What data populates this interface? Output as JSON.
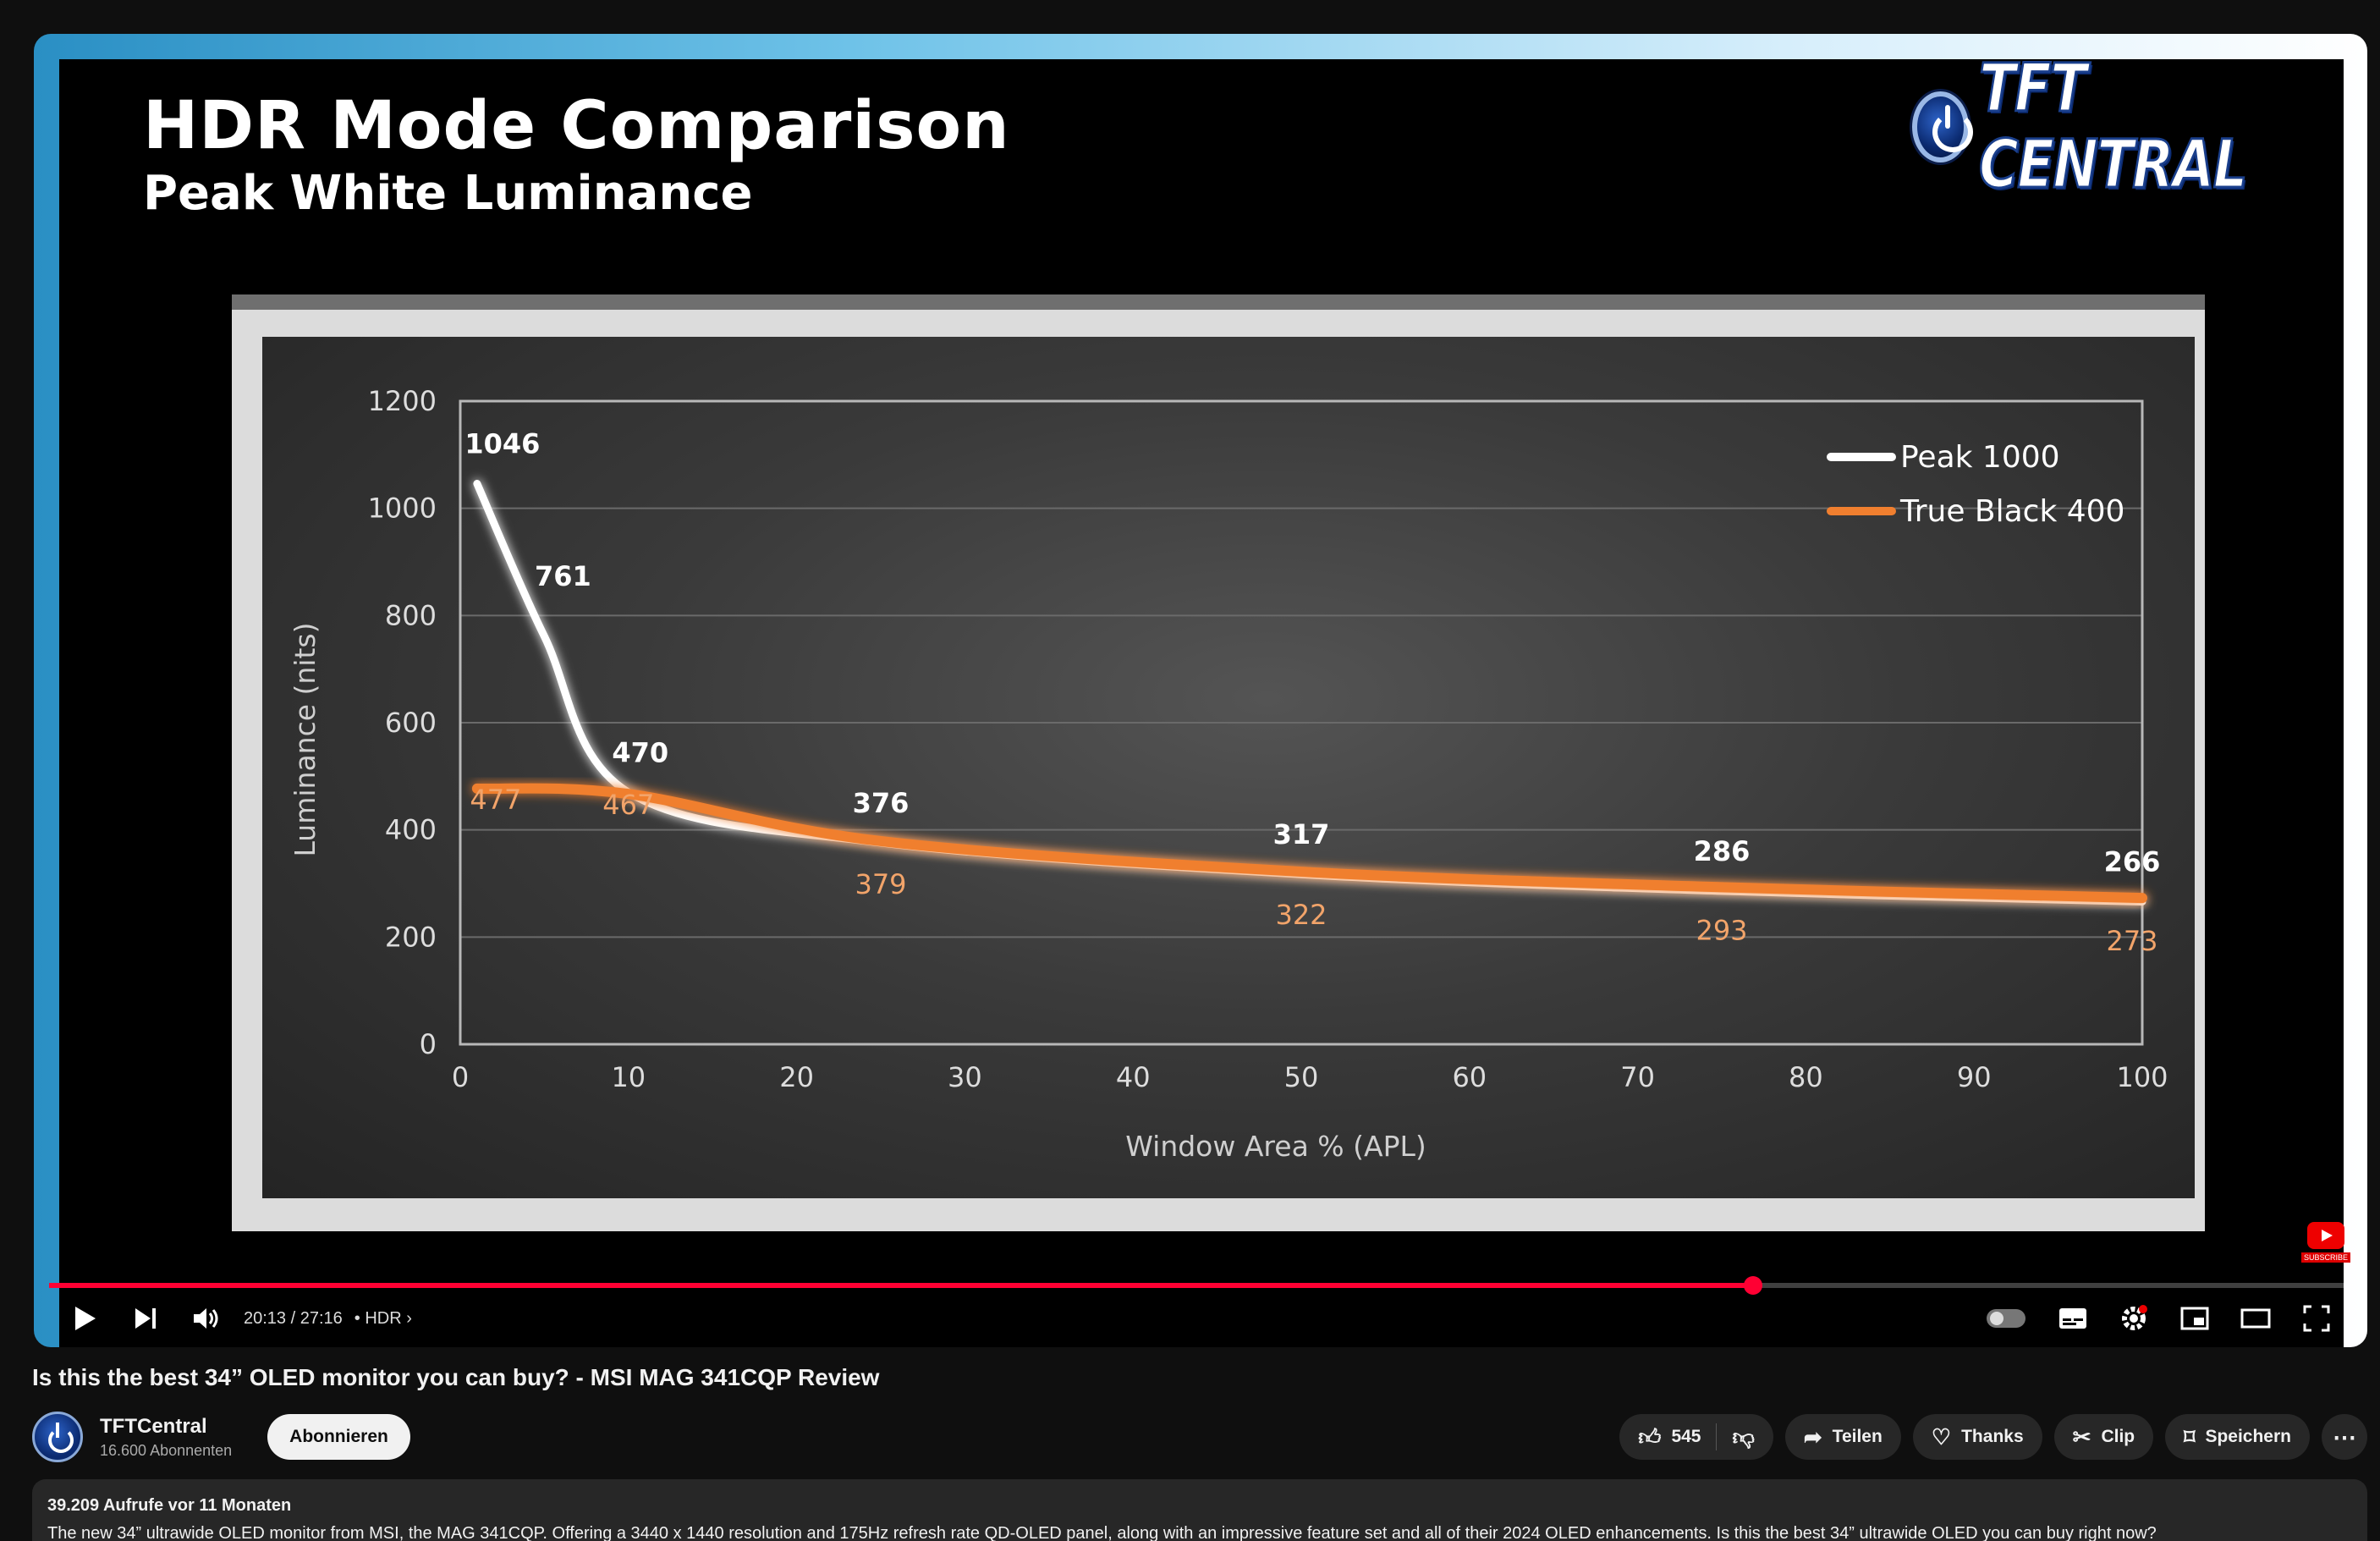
{
  "slide": {
    "title": "HDR Mode Comparison",
    "subtitle": "Peak White Luminance",
    "logo_text": "TFT CENTRAL"
  },
  "chart_data": {
    "type": "line",
    "title": "HDR Mode Comparison",
    "subtitle": "Peak White Luminance",
    "xlabel": "Window Area % (APL)",
    "ylabel": "Luminance (nits)",
    "xlim": [
      0,
      100
    ],
    "ylim": [
      0,
      1200
    ],
    "xticks": [
      0,
      10,
      20,
      30,
      40,
      50,
      60,
      70,
      80,
      90,
      100
    ],
    "yticks": [
      0,
      200,
      400,
      600,
      800,
      1000,
      1200
    ],
    "grid": true,
    "legend": "top-right",
    "series": [
      {
        "name": "Peak 1000",
        "color": "#ffffff",
        "points": [
          [
            1,
            1046
          ],
          [
            5,
            761
          ],
          [
            10,
            470
          ],
          [
            25,
            376
          ],
          [
            50,
            317
          ],
          [
            75,
            286
          ],
          [
            100,
            266
          ]
        ]
      },
      {
        "name": "True Black 400",
        "color": "#f07f2f",
        "points": [
          [
            1,
            477
          ],
          [
            10,
            467
          ],
          [
            25,
            379
          ],
          [
            50,
            322
          ],
          [
            75,
            293
          ],
          [
            100,
            273
          ]
        ]
      }
    ],
    "data_labels": {
      "Peak 1000": [
        "1046",
        "761",
        "470",
        "376",
        "317",
        "286",
        "266"
      ],
      "True Black 400": [
        "477",
        "467",
        "379",
        "322",
        "293",
        "273"
      ]
    }
  },
  "player": {
    "time_current": "20:13",
    "time_total": "27:16",
    "quality_label": "HDR",
    "progress": 0.74,
    "subscribe_badge": "SUBSCRIBE",
    "colors": {
      "progress": "#ff0033"
    }
  },
  "video": {
    "title": "Is this the best 34” OLED monitor you can buy? - MSI MAG 341CQP Review"
  },
  "channel": {
    "name": "TFTCentral",
    "subscribers": "16.600 Abonnenten",
    "subscribe_label": "Abonnieren"
  },
  "actions": {
    "likes": "545",
    "share": "Teilen",
    "thanks": "Thanks",
    "clip": "Clip",
    "save": "Speichern"
  },
  "description": {
    "meta": "39.209 Aufrufe  vor 11 Monaten",
    "text": "The new 34” ultrawide OLED monitor from MSI, the MAG 341CQP. Offering a 3440 x 1440 resolution and 175Hz refresh rate QD-OLED panel, along with an impressive feature set and all of their 2024 OLED enhancements. Is this the best 34” ultrawide OLED you can buy right now?"
  }
}
